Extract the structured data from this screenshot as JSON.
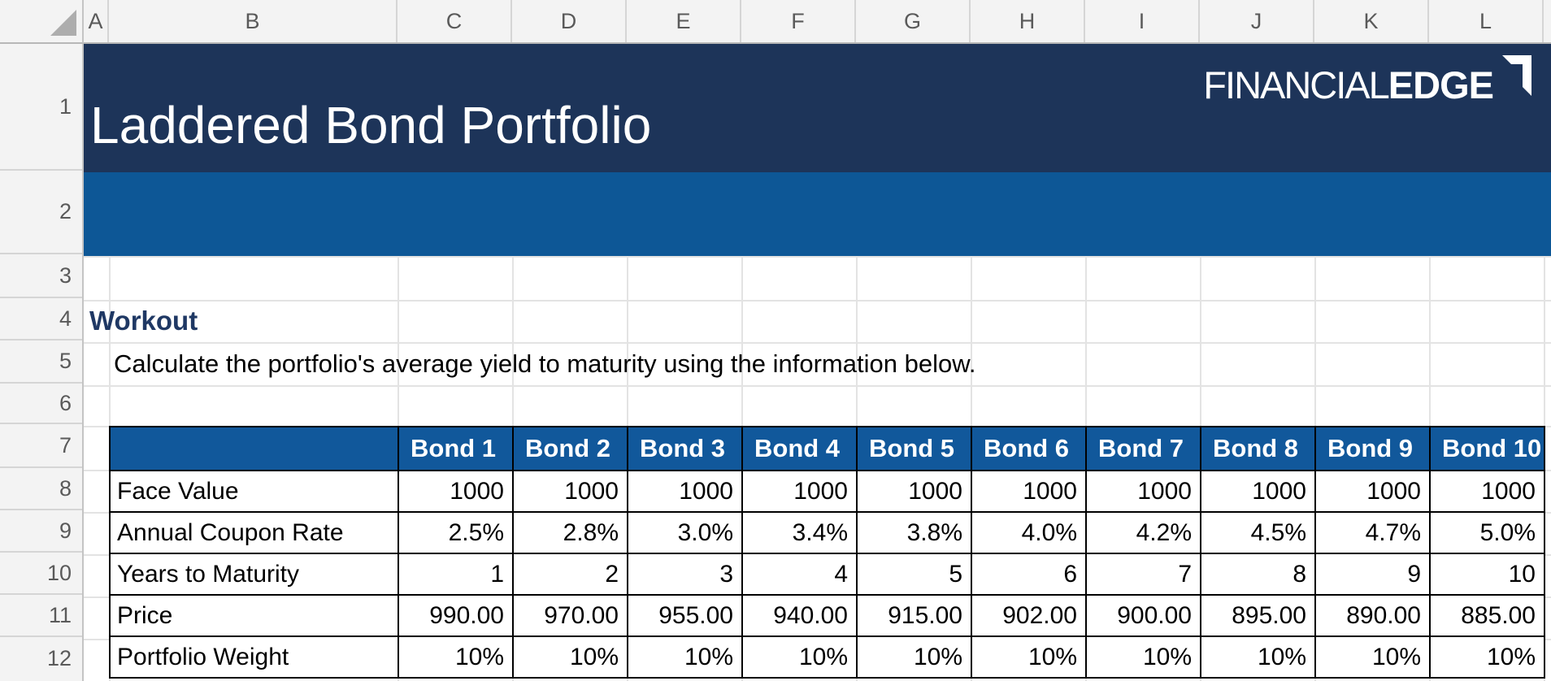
{
  "sheet": {
    "column_headers": [
      "A",
      "B",
      "C",
      "D",
      "E",
      "F",
      "G",
      "H",
      "I",
      "J",
      "K",
      "L"
    ],
    "row_headers": [
      "1",
      "2",
      "3",
      "4",
      "5",
      "6",
      "7",
      "8",
      "9",
      "10",
      "11",
      "12"
    ]
  },
  "banner": {
    "title": "Laddered Bond Portfolio",
    "logo": {
      "part1": "FINANCIAL",
      "part2": "EDGE",
      "mark": "corner-bracket-icon"
    }
  },
  "workout": {
    "heading": "Workout",
    "instruction": "Calculate the portfolio's average yield to maturity using the information below."
  },
  "table": {
    "corner_label": "",
    "column_headers": [
      "Bond 1",
      "Bond 2",
      "Bond 3",
      "Bond 4",
      "Bond 5",
      "Bond 6",
      "Bond 7",
      "Bond 8",
      "Bond 9",
      "Bond 10"
    ],
    "rows": [
      {
        "label": "Face Value",
        "values": [
          "1000",
          "1000",
          "1000",
          "1000",
          "1000",
          "1000",
          "1000",
          "1000",
          "1000",
          "1000"
        ]
      },
      {
        "label": "Annual Coupon Rate",
        "values": [
          "2.5%",
          "2.8%",
          "3.0%",
          "3.4%",
          "3.8%",
          "4.0%",
          "4.2%",
          "4.5%",
          "4.7%",
          "5.0%"
        ]
      },
      {
        "label": "Years to Maturity",
        "values": [
          "1",
          "2",
          "3",
          "4",
          "5",
          "6",
          "7",
          "8",
          "9",
          "10"
        ]
      },
      {
        "label": "Price",
        "values": [
          "990.00",
          "970.00",
          "955.00",
          "940.00",
          "915.00",
          "902.00",
          "900.00",
          "895.00",
          "890.00",
          "885.00"
        ]
      },
      {
        "label": "Portfolio Weight",
        "values": [
          "10%",
          "10%",
          "10%",
          "10%",
          "10%",
          "10%",
          "10%",
          "10%",
          "10%",
          "10%"
        ]
      }
    ]
  },
  "colors": {
    "banner_navy": "#1D3459",
    "banner_blue": "#0D5796",
    "table_header_blue": "#11589B",
    "heading_text_navy": "#1F3864",
    "gridline_gray": "#E3E3E3",
    "header_chrome_gray": "#F3F3F3"
  }
}
